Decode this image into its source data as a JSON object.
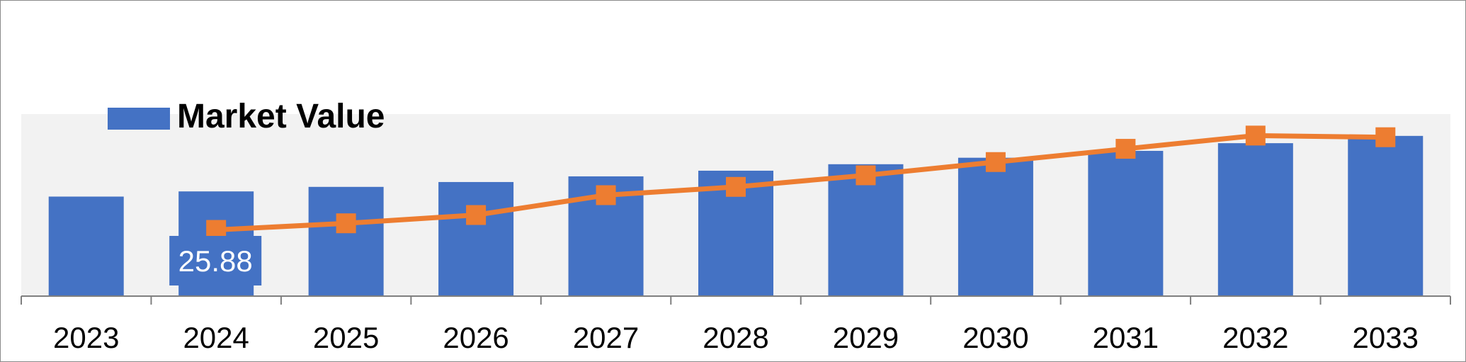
{
  "chart_data": {
    "type": "bar",
    "categories": [
      "2023",
      "2024",
      "2025",
      "2026",
      "2027",
      "2028",
      "2029",
      "2030",
      "2031",
      "2032",
      "2033"
    ],
    "series": [
      {
        "name": "Market Value",
        "type": "bar",
        "axis": "left",
        "values": [
          24.6,
          25.88,
          27.0,
          28.2,
          29.6,
          31.0,
          32.6,
          34.2,
          35.9,
          37.8,
          39.6
        ]
      },
      {
        "type": "line",
        "axis": "right",
        "values": [
          null,
          4.0,
          4.4,
          4.9,
          6.1,
          6.6,
          7.3,
          8.1,
          8.9,
          9.7,
          9.6
        ]
      }
    ],
    "data_labels": [
      {
        "category": "2024",
        "text": "25.88"
      }
    ],
    "ylim": [
      0,
      45
    ],
    "y2lim": [
      0,
      11
    ],
    "legend": {
      "position": "top-left",
      "entries": [
        "Market Value"
      ]
    },
    "grid": false,
    "colors": {
      "bar": "#4472C4",
      "line": "#ED7D31",
      "plot_bg": "#F2F2F2",
      "label_bg": "#4472C4",
      "label_text": "#FFFFFF"
    }
  }
}
